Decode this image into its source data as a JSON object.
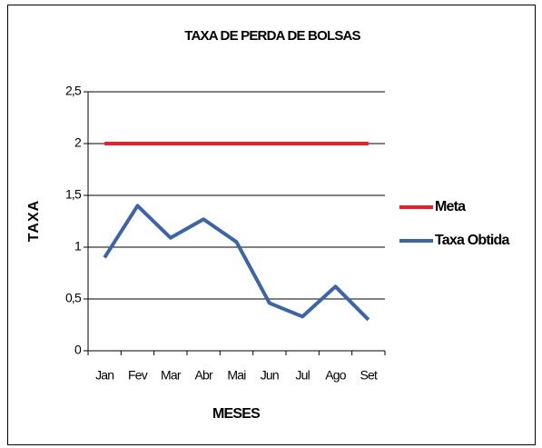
{
  "chart_data": {
    "type": "line",
    "title": "TAXA DE PERDA DE BOLSAS",
    "x_label": "MESES",
    "y_label": "TAXA",
    "categories": [
      "Jan",
      "Fev",
      "Mar",
      "Abr",
      "Mai",
      "Jun",
      "Jul",
      "Ago",
      "Set"
    ],
    "series": [
      {
        "name": "Meta",
        "color": "#e8202a",
        "values": [
          2,
          2,
          2,
          2,
          2,
          2,
          2,
          2,
          2
        ]
      },
      {
        "name": "Taxa Obtida",
        "color": "#3a64ad",
        "values": [
          0.9,
          1.4,
          1.09,
          1.27,
          1.05,
          0.46,
          0.33,
          0.62,
          0.3
        ]
      }
    ],
    "ylim": [
      0,
      2.5
    ],
    "yticks": [
      0,
      {
        "value": 0.5,
        "label": "0,5"
      },
      1,
      {
        "value": 1.5,
        "label": "1,5"
      },
      2,
      {
        "value": 2.5,
        "label": "2,5"
      }
    ],
    "grid": true,
    "legend": "right"
  }
}
